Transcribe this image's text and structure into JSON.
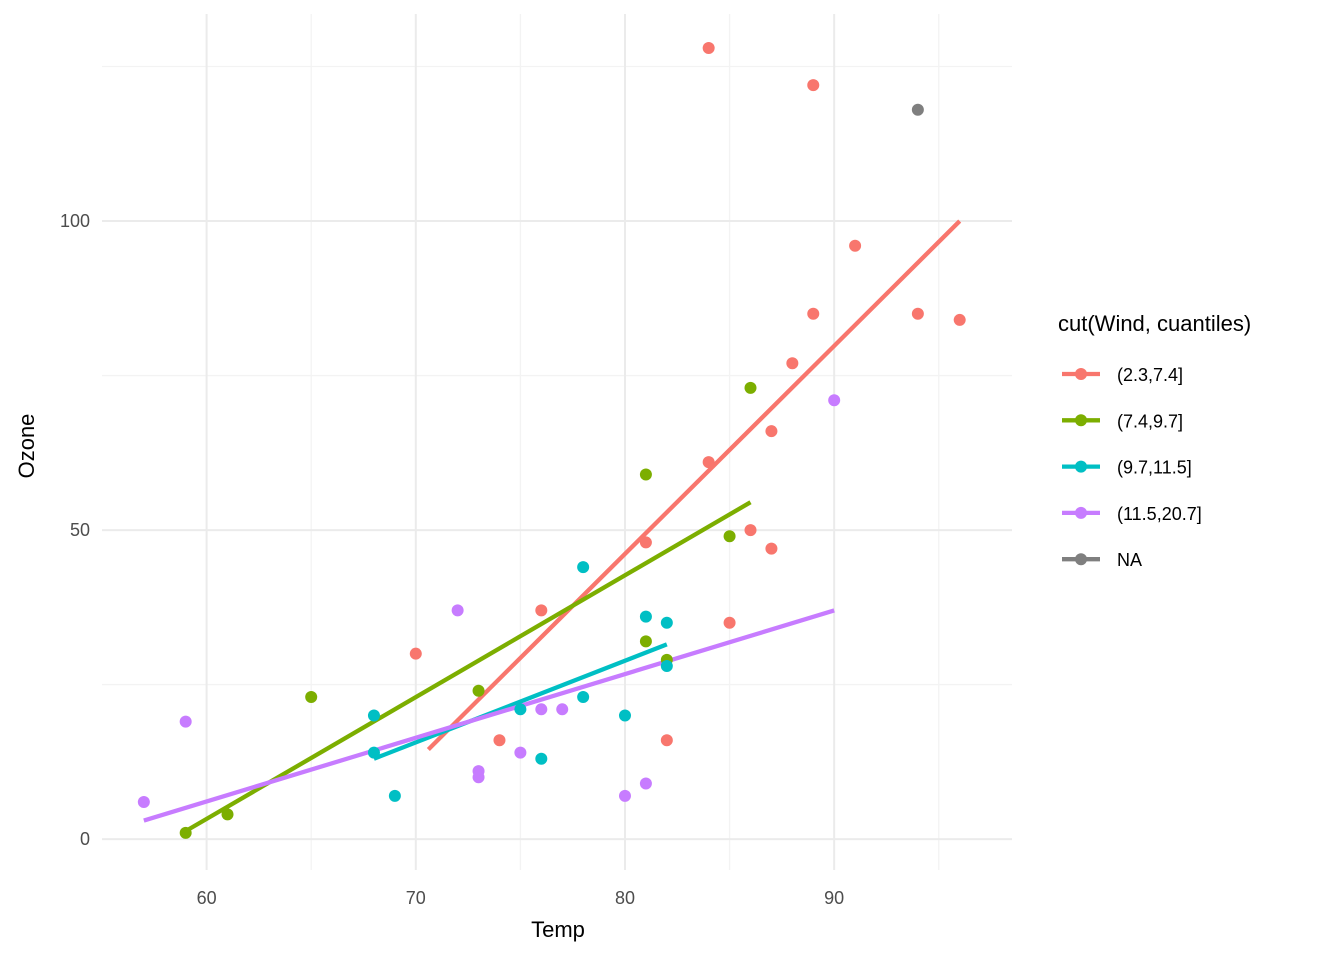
{
  "chart_data": {
    "type": "scatter",
    "title": "",
    "xlabel": "Temp",
    "ylabel": "Ozone",
    "xlim": [
      55,
      98.5
    ],
    "ylim": [
      -5,
      133.5
    ],
    "x_ticks": [
      60,
      70,
      80,
      90
    ],
    "x_tick_labels": [
      "60",
      "70",
      "80",
      "90"
    ],
    "y_ticks": [
      0,
      50,
      100
    ],
    "y_tick_labels": [
      "0",
      "50",
      "100"
    ],
    "grid": true,
    "legend": {
      "title": "cut(Wind, cuantiles)",
      "placement": "right"
    },
    "series": [
      {
        "name": "(2.3,7.4]",
        "color": "#F8766D",
        "points": [
          [
            84,
            128
          ],
          [
            89,
            122
          ],
          [
            91,
            96
          ],
          [
            89,
            85
          ],
          [
            94,
            85
          ],
          [
            96,
            84
          ],
          [
            88,
            77
          ],
          [
            87,
            66
          ],
          [
            84,
            61
          ],
          [
            81,
            48
          ],
          [
            86,
            50
          ],
          [
            87,
            47
          ],
          [
            76,
            37
          ],
          [
            85,
            35
          ],
          [
            70,
            30
          ],
          [
            74,
            16
          ],
          [
            82,
            16
          ]
        ],
        "trend": [
          [
            70.6,
            14.5
          ],
          [
            96,
            100
          ]
        ]
      },
      {
        "name": "(7.4,9.7]",
        "color": "#7CAE00",
        "points": [
          [
            86,
            73
          ],
          [
            81,
            59
          ],
          [
            85,
            49
          ],
          [
            73,
            24
          ],
          [
            65,
            23
          ],
          [
            81,
            32
          ],
          [
            82,
            29
          ],
          [
            61,
            4
          ],
          [
            59,
            1
          ]
        ],
        "trend": [
          [
            59,
            1.3
          ],
          [
            86,
            54.5
          ]
        ]
      },
      {
        "name": "(9.7,11.5]",
        "color": "#00BFC4",
        "points": [
          [
            78,
            44
          ],
          [
            81,
            36
          ],
          [
            82,
            35
          ],
          [
            82,
            28
          ],
          [
            78,
            23
          ],
          [
            68,
            20
          ],
          [
            80,
            20
          ],
          [
            75,
            21
          ],
          [
            68,
            14
          ],
          [
            76,
            13
          ],
          [
            69,
            7
          ]
        ],
        "trend": [
          [
            68,
            13
          ],
          [
            82,
            31.5
          ]
        ]
      },
      {
        "name": "(11.5,20.7]",
        "color": "#C77CFF",
        "points": [
          [
            90,
            71
          ],
          [
            72,
            37
          ],
          [
            76,
            21
          ],
          [
            77,
            21
          ],
          [
            59,
            19
          ],
          [
            75,
            14
          ],
          [
            73,
            11
          ],
          [
            73,
            10
          ],
          [
            81,
            9
          ],
          [
            80,
            7
          ],
          [
            57,
            6
          ]
        ],
        "trend": [
          [
            57,
            3
          ],
          [
            90,
            37
          ]
        ]
      },
      {
        "name": "NA",
        "color": "#7F7F7F",
        "points": [
          [
            94,
            118
          ]
        ],
        "trend": []
      }
    ]
  }
}
